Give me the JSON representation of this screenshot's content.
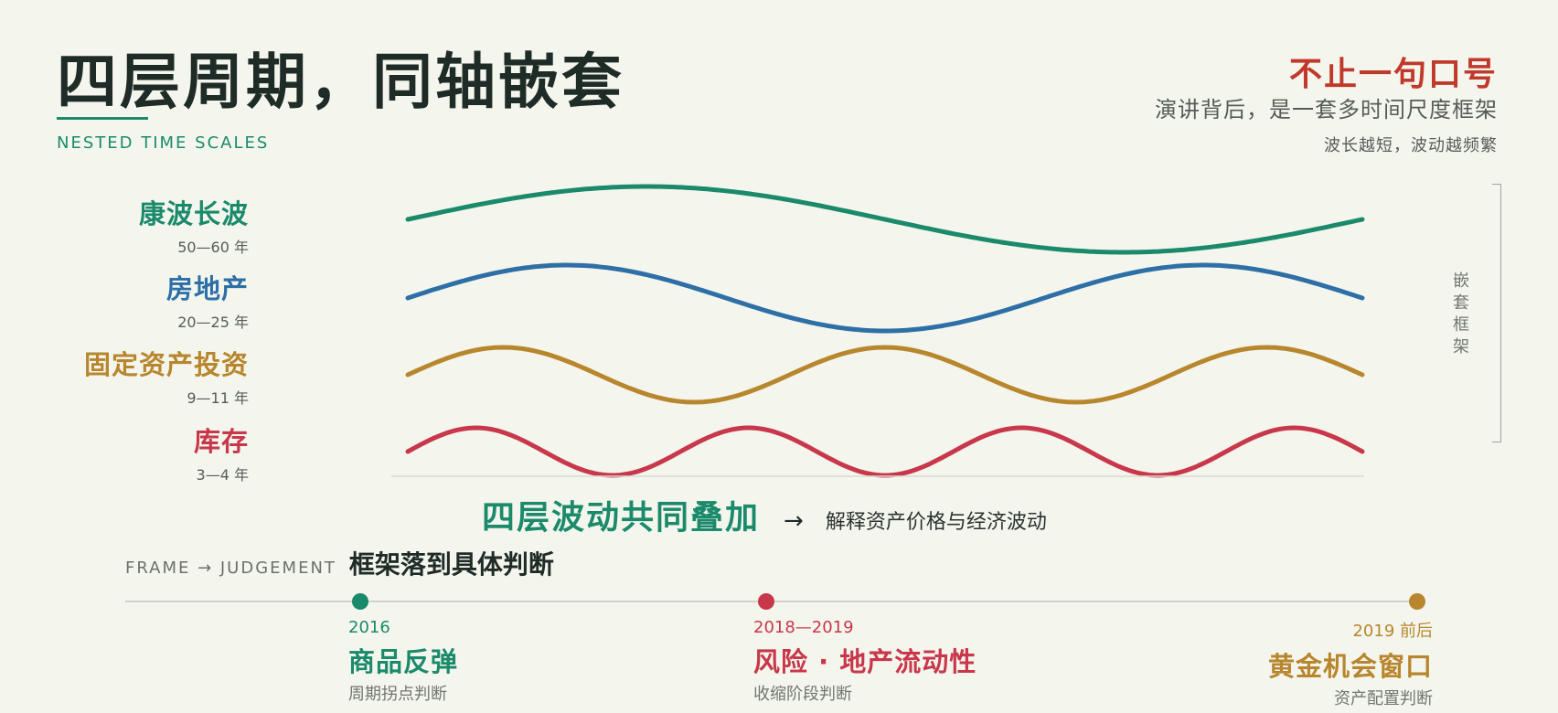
{
  "header": {
    "title": "四层周期，同轴嵌套",
    "subtitle_en": "NESTED TIME SCALES"
  },
  "side_note": {
    "title": "不止一句口号",
    "line1": "演讲背后，是一套多时间尺度框架",
    "line2": "波长越短，波动越频繁"
  },
  "cycles": [
    {
      "name": "康波长波",
      "period": "50—60 年",
      "color": "#1a8a6b",
      "cycles_shown": 1.0
    },
    {
      "name": "房地产",
      "period": "20—25 年",
      "color": "#2e6fa6",
      "cycles_shown": 1.5
    },
    {
      "name": "固定资产投资",
      "period": "9—11 年",
      "color": "#b8862d",
      "cycles_shown": 2.5
    },
    {
      "name": "库存",
      "period": "3—4 年",
      "color": "#c8374a",
      "cycles_shown": 3.5
    }
  ],
  "bracket_label": "嵌套框架",
  "summary": {
    "main": "四层波动共同叠加",
    "arrow": "→",
    "desc": "解释资产价格与经济波动"
  },
  "frame": {
    "en": "FRAME → JUDGEMENT",
    "zh": "框架落到具体判断"
  },
  "timeline": [
    {
      "year": "2016",
      "head": "商品反弹",
      "note": "周期拐点判断",
      "color": "#1a8a6b"
    },
    {
      "year": "2018—2019",
      "head": "风险 · 地产流动性",
      "note": "收缩阶段判断",
      "color": "#c8374a"
    },
    {
      "year": "2019 前后",
      "head": "黄金机会窗口",
      "note": "资产配置判断",
      "color": "#b8862d"
    }
  ]
}
